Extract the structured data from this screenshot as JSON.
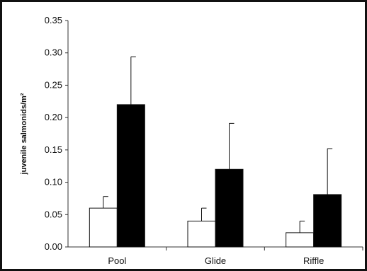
{
  "chart_data": {
    "type": "bar",
    "categories": [
      "Pool",
      "Glide",
      "Riffle"
    ],
    "series": [
      {
        "fill": "#ffffff",
        "values": [
          0.06,
          0.04,
          0.022
        ],
        "error_upper": [
          0.078,
          0.06,
          0.04
        ]
      },
      {
        "fill": "#000000",
        "values": [
          0.22,
          0.12,
          0.081
        ],
        "error_upper": [
          0.294,
          0.191,
          0.152
        ]
      }
    ],
    "ylabel": "juvenile salmonids/m²",
    "ylim": [
      0,
      0.35
    ],
    "yticks": [
      "0.00",
      "0.05",
      "0.10",
      "0.15",
      "0.20",
      "0.25",
      "0.30",
      "0.35"
    ],
    "grid": false,
    "legend": "none"
  }
}
